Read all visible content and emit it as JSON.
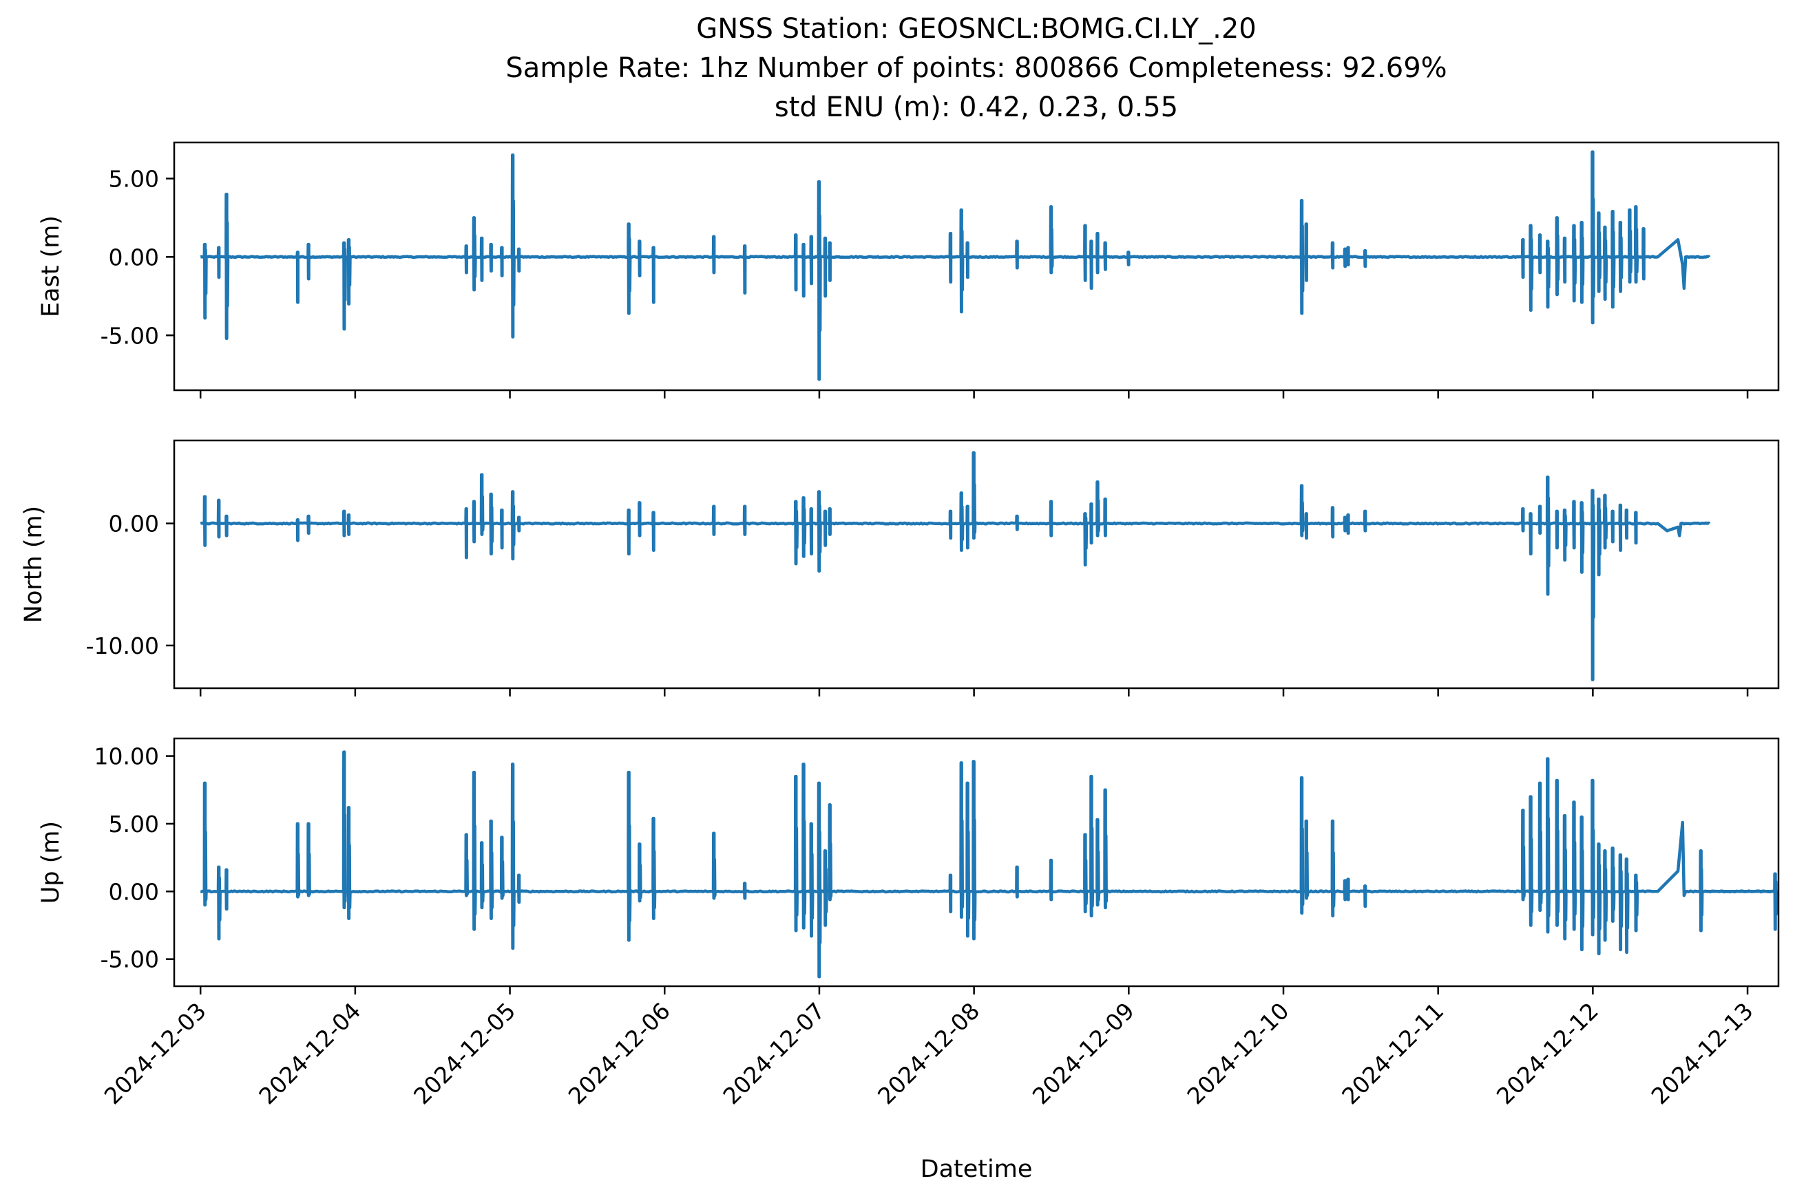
{
  "figure": {
    "title_lines": [
      "GNSS Station: GEOSNCL:BOMG.CI.LY_.20",
      "Sample Rate: 1hz   Number of points: 800866    Completeness:  92.69%",
      "std ENU (m):  0.42, 0.23, 0.55"
    ],
    "xlabel": "Datetime",
    "line_color": "#1f77b4"
  },
  "chart_data": [
    {
      "type": "line",
      "ylabel": "East (m)",
      "series_color": "#1f77b4",
      "xlim": [
        -0.17,
        10.2
      ],
      "ylim": [
        -8.5,
        7.3
      ],
      "yticks": [
        5.0,
        0.0,
        -5.0
      ],
      "yticklabels": [
        "5.00",
        "0.00",
        "-5.00"
      ],
      "xticks": [
        0,
        1,
        2,
        3,
        4,
        5,
        6,
        7,
        8,
        9,
        10
      ],
      "xticklabels": [
        "2024-12-03",
        "2024-12-04",
        "2024-12-05",
        "2024-12-06",
        "2024-12-07",
        "2024-12-08",
        "2024-12-09",
        "2024-12-10",
        "2024-12-11",
        "2024-12-12",
        "2024-12-13"
      ],
      "x_unit": "days from 2024-12-03",
      "x_range": [
        0.0,
        9.75
      ],
      "baseline": 0.0,
      "gap": {
        "x": [
          9.42,
          9.55,
          9.58
        ],
        "y": [
          1.1,
          -0.5,
          -2.0
        ]
      },
      "spikes": [
        {
          "x": 0.03,
          "min": -3.9,
          "max": 0.8
        },
        {
          "x": 0.12,
          "min": -1.3,
          "max": 0.6
        },
        {
          "x": 0.17,
          "min": -5.2,
          "max": 4.0
        },
        {
          "x": 0.63,
          "min": -2.9,
          "max": 0.3
        },
        {
          "x": 0.7,
          "min": -1.4,
          "max": 0.8
        },
        {
          "x": 0.93,
          "min": -4.6,
          "max": 0.9
        },
        {
          "x": 0.96,
          "min": -3.0,
          "max": 1.1
        },
        {
          "x": 1.72,
          "min": -1.0,
          "max": 0.7
        },
        {
          "x": 1.77,
          "min": -2.1,
          "max": 2.5
        },
        {
          "x": 1.82,
          "min": -1.5,
          "max": 1.2
        },
        {
          "x": 1.88,
          "min": -0.9,
          "max": 0.8
        },
        {
          "x": 1.95,
          "min": -1.2,
          "max": 0.6
        },
        {
          "x": 2.02,
          "min": -5.1,
          "max": 6.5
        },
        {
          "x": 2.06,
          "min": -0.9,
          "max": 0.5
        },
        {
          "x": 2.77,
          "min": -3.6,
          "max": 2.1
        },
        {
          "x": 2.84,
          "min": -1.2,
          "max": 1.0
        },
        {
          "x": 2.93,
          "min": -2.9,
          "max": 0.6
        },
        {
          "x": 3.32,
          "min": -1.0,
          "max": 1.3
        },
        {
          "x": 3.52,
          "min": -2.3,
          "max": 0.7
        },
        {
          "x": 3.85,
          "min": -2.1,
          "max": 1.4
        },
        {
          "x": 3.9,
          "min": -2.5,
          "max": 0.8
        },
        {
          "x": 3.95,
          "min": -1.7,
          "max": 1.3
        },
        {
          "x": 4.0,
          "min": -7.8,
          "max": 4.8
        },
        {
          "x": 4.04,
          "min": -2.5,
          "max": 1.2
        },
        {
          "x": 4.07,
          "min": -1.5,
          "max": 0.9
        },
        {
          "x": 4.85,
          "min": -1.6,
          "max": 1.5
        },
        {
          "x": 4.92,
          "min": -3.5,
          "max": 3.0
        },
        {
          "x": 4.96,
          "min": -1.3,
          "max": 0.9
        },
        {
          "x": 5.28,
          "min": -0.7,
          "max": 1.0
        },
        {
          "x": 5.5,
          "min": -1.0,
          "max": 3.2
        },
        {
          "x": 5.72,
          "min": -1.5,
          "max": 2.0
        },
        {
          "x": 5.76,
          "min": -2.0,
          "max": 1.0
        },
        {
          "x": 5.8,
          "min": -1.0,
          "max": 1.5
        },
        {
          "x": 5.85,
          "min": -0.8,
          "max": 0.9
        },
        {
          "x": 6.0,
          "min": -0.5,
          "max": 0.3
        },
        {
          "x": 7.12,
          "min": -3.6,
          "max": 3.6
        },
        {
          "x": 7.15,
          "min": -1.5,
          "max": 2.1
        },
        {
          "x": 7.32,
          "min": -0.7,
          "max": 0.9
        },
        {
          "x": 7.4,
          "min": -0.6,
          "max": 0.5
        },
        {
          "x": 7.42,
          "min": -0.5,
          "max": 0.6
        },
        {
          "x": 7.53,
          "min": -0.6,
          "max": 0.4
        },
        {
          "x": 8.55,
          "min": -1.3,
          "max": 1.1
        },
        {
          "x": 8.6,
          "min": -3.4,
          "max": 2.0
        },
        {
          "x": 8.66,
          "min": -1.0,
          "max": 1.4
        },
        {
          "x": 8.71,
          "min": -3.2,
          "max": 1.0
        },
        {
          "x": 8.77,
          "min": -2.4,
          "max": 2.5
        },
        {
          "x": 8.82,
          "min": -1.6,
          "max": 1.2
        },
        {
          "x": 8.88,
          "min": -2.8,
          "max": 2.0
        },
        {
          "x": 8.93,
          "min": -2.9,
          "max": 2.2
        },
        {
          "x": 9.0,
          "min": -4.2,
          "max": 6.7
        },
        {
          "x": 9.04,
          "min": -2.2,
          "max": 2.8
        },
        {
          "x": 9.08,
          "min": -2.7,
          "max": 1.9
        },
        {
          "x": 9.13,
          "min": -3.2,
          "max": 2.9
        },
        {
          "x": 9.18,
          "min": -2.2,
          "max": 2.2
        },
        {
          "x": 9.24,
          "min": -1.6,
          "max": 3.0
        },
        {
          "x": 9.28,
          "min": -1.6,
          "max": 3.2
        },
        {
          "x": 9.33,
          "min": -1.4,
          "max": 1.8
        }
      ]
    },
    {
      "type": "line",
      "ylabel": "North (m)",
      "series_color": "#1f77b4",
      "xlim": [
        -0.17,
        10.2
      ],
      "ylim": [
        -13.5,
        6.8
      ],
      "yticks": [
        0.0,
        -10.0
      ],
      "yticklabels": [
        "0.00",
        "-10.00"
      ],
      "xticks": [
        0,
        1,
        2,
        3,
        4,
        5,
        6,
        7,
        8,
        9,
        10
      ],
      "xticklabels": [
        "2024-12-03",
        "2024-12-04",
        "2024-12-05",
        "2024-12-06",
        "2024-12-07",
        "2024-12-08",
        "2024-12-09",
        "2024-12-10",
        "2024-12-11",
        "2024-12-12",
        "2024-12-13"
      ],
      "x_unit": "days from 2024-12-03",
      "x_range": [
        0.0,
        9.75
      ],
      "baseline": 0.0,
      "gap": {
        "x": [
          9.42,
          9.48,
          9.55
        ],
        "y": [
          -0.6,
          -0.3,
          -1.0
        ]
      },
      "spikes": [
        {
          "x": 0.03,
          "min": -1.8,
          "max": 2.2
        },
        {
          "x": 0.12,
          "min": -1.1,
          "max": 1.9
        },
        {
          "x": 0.17,
          "min": -1.0,
          "max": 0.6
        },
        {
          "x": 0.63,
          "min": -1.4,
          "max": 0.3
        },
        {
          "x": 0.7,
          "min": -0.8,
          "max": 0.6
        },
        {
          "x": 0.93,
          "min": -1.0,
          "max": 1.0
        },
        {
          "x": 0.96,
          "min": -0.9,
          "max": 0.7
        },
        {
          "x": 1.72,
          "min": -2.8,
          "max": 1.2
        },
        {
          "x": 1.77,
          "min": -1.5,
          "max": 1.8
        },
        {
          "x": 1.82,
          "min": -0.9,
          "max": 4.0
        },
        {
          "x": 1.88,
          "min": -2.5,
          "max": 2.4
        },
        {
          "x": 1.95,
          "min": -2.0,
          "max": 1.1
        },
        {
          "x": 2.02,
          "min": -2.9,
          "max": 2.6
        },
        {
          "x": 2.06,
          "min": -0.6,
          "max": 0.5
        },
        {
          "x": 2.77,
          "min": -2.5,
          "max": 1.1
        },
        {
          "x": 2.84,
          "min": -1.0,
          "max": 1.7
        },
        {
          "x": 2.93,
          "min": -2.2,
          "max": 0.9
        },
        {
          "x": 3.32,
          "min": -0.9,
          "max": 1.4
        },
        {
          "x": 3.52,
          "min": -0.9,
          "max": 1.4
        },
        {
          "x": 3.85,
          "min": -3.3,
          "max": 1.8
        },
        {
          "x": 3.9,
          "min": -2.7,
          "max": 2.1
        },
        {
          "x": 3.95,
          "min": -2.5,
          "max": 1.2
        },
        {
          "x": 4.0,
          "min": -3.9,
          "max": 2.6
        },
        {
          "x": 4.04,
          "min": -1.8,
          "max": 1.0
        },
        {
          "x": 4.07,
          "min": -0.9,
          "max": 1.2
        },
        {
          "x": 4.85,
          "min": -1.2,
          "max": 1.0
        },
        {
          "x": 4.92,
          "min": -2.2,
          "max": 2.5
        },
        {
          "x": 4.96,
          "min": -2.0,
          "max": 1.4
        },
        {
          "x": 5.0,
          "min": -1.2,
          "max": 5.8
        },
        {
          "x": 5.28,
          "min": -0.5,
          "max": 0.6
        },
        {
          "x": 5.5,
          "min": -1.0,
          "max": 1.8
        },
        {
          "x": 5.72,
          "min": -3.4,
          "max": 0.8
        },
        {
          "x": 5.76,
          "min": -1.6,
          "max": 1.6
        },
        {
          "x": 5.8,
          "min": -1.0,
          "max": 3.4
        },
        {
          "x": 5.85,
          "min": -1.0,
          "max": 2.0
        },
        {
          "x": 7.12,
          "min": -1.0,
          "max": 3.1
        },
        {
          "x": 7.15,
          "min": -1.2,
          "max": 0.8
        },
        {
          "x": 7.32,
          "min": -1.1,
          "max": 1.3
        },
        {
          "x": 7.4,
          "min": -0.6,
          "max": 0.5
        },
        {
          "x": 7.42,
          "min": -0.8,
          "max": 0.7
        },
        {
          "x": 7.53,
          "min": -0.6,
          "max": 1.0
        },
        {
          "x": 8.55,
          "min": -0.6,
          "max": 1.2
        },
        {
          "x": 8.6,
          "min": -2.5,
          "max": 0.8
        },
        {
          "x": 8.66,
          "min": -0.8,
          "max": 1.4
        },
        {
          "x": 8.71,
          "min": -5.8,
          "max": 3.8
        },
        {
          "x": 8.77,
          "min": -2.0,
          "max": 1.0
        },
        {
          "x": 8.82,
          "min": -3.0,
          "max": 1.1
        },
        {
          "x": 8.88,
          "min": -2.0,
          "max": 1.8
        },
        {
          "x": 8.93,
          "min": -4.0,
          "max": 1.7
        },
        {
          "x": 9.0,
          "min": -12.8,
          "max": 2.7
        },
        {
          "x": 9.04,
          "min": -4.2,
          "max": 2.0
        },
        {
          "x": 9.08,
          "min": -2.0,
          "max": 2.3
        },
        {
          "x": 9.13,
          "min": -1.5,
          "max": 1.0
        },
        {
          "x": 9.18,
          "min": -2.2,
          "max": 1.5
        },
        {
          "x": 9.22,
          "min": -1.2,
          "max": 1.1
        },
        {
          "x": 9.28,
          "min": -1.6,
          "max": 0.9
        }
      ]
    },
    {
      "type": "line",
      "ylabel": "Up (m)",
      "series_color": "#1f77b4",
      "xlim": [
        -0.17,
        10.2
      ],
      "ylim": [
        -7.0,
        11.3
      ],
      "yticks": [
        10.0,
        5.0,
        0.0,
        -5.0
      ],
      "yticklabels": [
        "10.00",
        "5.00",
        "0.00",
        "-5.00"
      ],
      "xticks": [
        0,
        1,
        2,
        3,
        4,
        5,
        6,
        7,
        8,
        9,
        10
      ],
      "xticklabels": [
        "2024-12-03",
        "2024-12-04",
        "2024-12-05",
        "2024-12-06",
        "2024-12-07",
        "2024-12-08",
        "2024-12-09",
        "2024-12-10",
        "2024-12-11",
        "2024-12-12",
        "2024-12-13"
      ],
      "x_unit": "days from 2024-12-03",
      "x_range": [
        0.0,
        9.75
      ],
      "baseline": 0.0,
      "gap": {
        "x": [
          9.42,
          9.55,
          9.58
        ],
        "y": [
          1.5,
          5.1,
          -0.3
        ]
      },
      "spikes": [
        {
          "x": 0.03,
          "min": -1.0,
          "max": 8.0
        },
        {
          "x": 0.12,
          "min": -3.5,
          "max": 1.8
        },
        {
          "x": 0.17,
          "min": -1.3,
          "max": 1.6
        },
        {
          "x": 0.63,
          "min": -0.4,
          "max": 5.0
        },
        {
          "x": 0.7,
          "min": -0.3,
          "max": 5.0
        },
        {
          "x": 0.93,
          "min": -1.2,
          "max": 10.3
        },
        {
          "x": 0.96,
          "min": -2.0,
          "max": 6.2
        },
        {
          "x": 1.72,
          "min": -0.3,
          "max": 4.2
        },
        {
          "x": 1.77,
          "min": -2.8,
          "max": 8.8
        },
        {
          "x": 1.82,
          "min": -1.2,
          "max": 3.6
        },
        {
          "x": 1.88,
          "min": -2.0,
          "max": 5.2
        },
        {
          "x": 1.95,
          "min": -0.5,
          "max": 4.0
        },
        {
          "x": 2.02,
          "min": -4.2,
          "max": 9.4
        },
        {
          "x": 2.06,
          "min": -0.8,
          "max": 1.2
        },
        {
          "x": 2.77,
          "min": -3.6,
          "max": 8.8
        },
        {
          "x": 2.84,
          "min": -0.7,
          "max": 3.5
        },
        {
          "x": 2.93,
          "min": -2.0,
          "max": 5.4
        },
        {
          "x": 3.32,
          "min": -0.5,
          "max": 4.3
        },
        {
          "x": 3.52,
          "min": -0.5,
          "max": 0.6
        },
        {
          "x": 3.85,
          "min": -2.9,
          "max": 8.5
        },
        {
          "x": 3.9,
          "min": -2.7,
          "max": 9.4
        },
        {
          "x": 3.95,
          "min": -3.3,
          "max": 5.0
        },
        {
          "x": 4.0,
          "min": -6.3,
          "max": 8.0
        },
        {
          "x": 4.04,
          "min": -2.5,
          "max": 3.0
        },
        {
          "x": 4.07,
          "min": -0.6,
          "max": 6.4
        },
        {
          "x": 4.85,
          "min": -1.5,
          "max": 1.2
        },
        {
          "x": 4.92,
          "min": -1.9,
          "max": 9.5
        },
        {
          "x": 4.96,
          "min": -3.3,
          "max": 8.0
        },
        {
          "x": 5.0,
          "min": -3.5,
          "max": 9.6
        },
        {
          "x": 5.28,
          "min": -0.4,
          "max": 1.8
        },
        {
          "x": 5.5,
          "min": -0.6,
          "max": 2.3
        },
        {
          "x": 5.72,
          "min": -1.5,
          "max": 4.2
        },
        {
          "x": 5.76,
          "min": -1.8,
          "max": 8.5
        },
        {
          "x": 5.8,
          "min": -1.0,
          "max": 5.3
        },
        {
          "x": 5.85,
          "min": -1.2,
          "max": 7.5
        },
        {
          "x": 7.12,
          "min": -1.6,
          "max": 8.4
        },
        {
          "x": 7.15,
          "min": -0.5,
          "max": 5.2
        },
        {
          "x": 7.32,
          "min": -1.8,
          "max": 5.2
        },
        {
          "x": 7.4,
          "min": -0.6,
          "max": 0.8
        },
        {
          "x": 7.42,
          "min": -0.6,
          "max": 0.9
        },
        {
          "x": 7.53,
          "min": -1.1,
          "max": 0.4
        },
        {
          "x": 8.55,
          "min": -0.6,
          "max": 6.0
        },
        {
          "x": 8.6,
          "min": -2.5,
          "max": 7.0
        },
        {
          "x": 8.66,
          "min": -1.4,
          "max": 8.0
        },
        {
          "x": 8.71,
          "min": -3.0,
          "max": 9.8
        },
        {
          "x": 8.77,
          "min": -2.5,
          "max": 8.2
        },
        {
          "x": 8.82,
          "min": -3.5,
          "max": 5.6
        },
        {
          "x": 8.88,
          "min": -2.8,
          "max": 6.6
        },
        {
          "x": 8.93,
          "min": -4.3,
          "max": 5.5
        },
        {
          "x": 9.0,
          "min": -3.2,
          "max": 8.2
        },
        {
          "x": 9.04,
          "min": -4.6,
          "max": 3.5
        },
        {
          "x": 9.08,
          "min": -3.6,
          "max": 3.0
        },
        {
          "x": 9.13,
          "min": -2.2,
          "max": 3.2
        },
        {
          "x": 9.18,
          "min": -4.3,
          "max": 2.7
        },
        {
          "x": 9.22,
          "min": -4.5,
          "max": 2.4
        },
        {
          "x": 9.28,
          "min": -2.9,
          "max": 1.2
        },
        {
          "x": 9.7,
          "min": -2.9,
          "max": 3.0
        },
        {
          "x": 10.18,
          "min": -2.8,
          "max": 1.3
        }
      ]
    }
  ]
}
